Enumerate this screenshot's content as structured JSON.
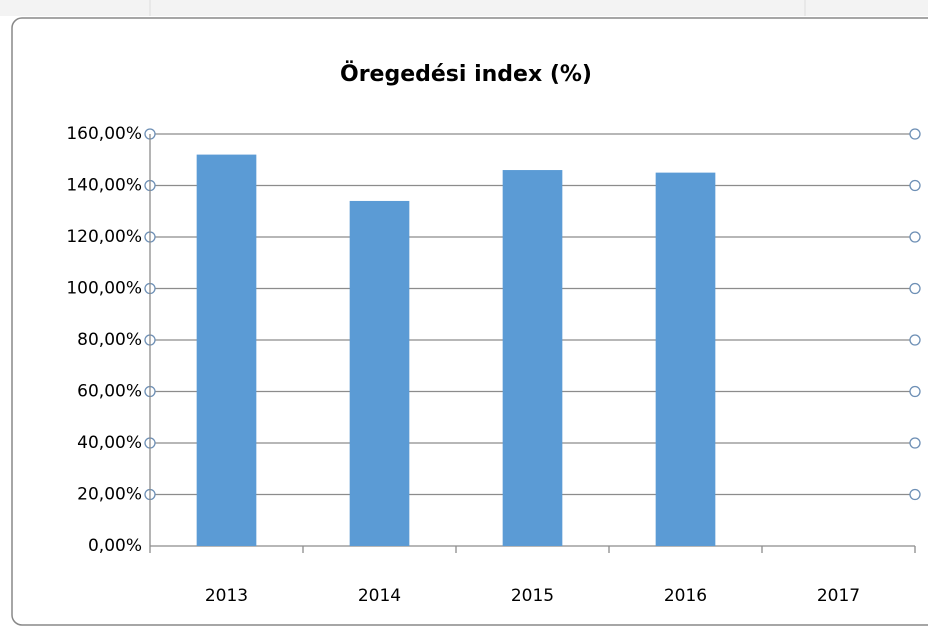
{
  "chart_data": {
    "type": "bar",
    "title": "Öregedési index (%)",
    "categories": [
      "2013",
      "2014",
      "2015",
      "2016",
      "2017"
    ],
    "values": [
      152,
      134,
      146,
      145,
      null
    ],
    "color": "#5b9bd5",
    "ylim": [
      0,
      160
    ],
    "yticks": [
      {
        "value": 0,
        "label": "0,00%"
      },
      {
        "value": 20,
        "label": "20,00%"
      },
      {
        "value": 40,
        "label": "40,00%"
      },
      {
        "value": 60,
        "label": "60,00%"
      },
      {
        "value": 80,
        "label": "80,00%"
      },
      {
        "value": 100,
        "label": "100,00%"
      },
      {
        "value": 120,
        "label": "120,00%"
      },
      {
        "value": 140,
        "label": "140,00%"
      },
      {
        "value": 160,
        "label": "160,00%"
      }
    ],
    "grid": true
  }
}
